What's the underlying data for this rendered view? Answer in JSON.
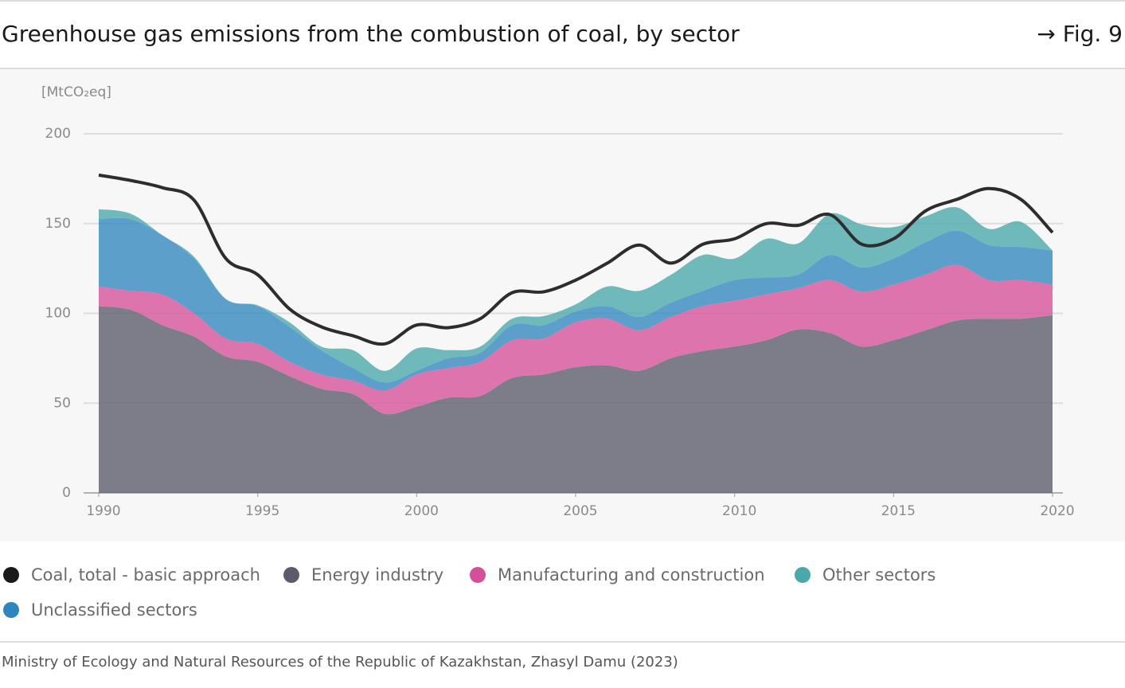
{
  "chart_data": {
    "type": "stacked-area-line",
    "title": "Greenhouse gas emissions from the combustion of coal, by sector",
    "figure_label": "→ Fig. 9",
    "y_axis_label": "[MtCO₂eq]",
    "source": "Ministry of Ecology and Natural Resources of the Republic of Kazakhstan, Zhasyl Damu (2023)",
    "x": [
      1990,
      1991,
      1992,
      1993,
      1994,
      1995,
      1996,
      1997,
      1998,
      1999,
      2000,
      2001,
      2002,
      2003,
      2004,
      2005,
      2006,
      2007,
      2008,
      2009,
      2010,
      2011,
      2012,
      2013,
      2014,
      2015,
      2016,
      2017,
      2018,
      2019,
      2020
    ],
    "xlim": [
      1990,
      2020
    ],
    "xticks": [
      1990,
      1995,
      2000,
      2005,
      2010,
      2015,
      2020
    ],
    "ylim": [
      0,
      200
    ],
    "yticks": [
      0,
      50,
      100,
      150,
      200
    ],
    "grid": true,
    "series": [
      {
        "name": "Coal, total - basic approach",
        "color": "#1a1a1a",
        "kind": "line",
        "values": [
          177,
          174,
          170,
          163,
          130.5,
          121.5,
          102.5,
          92.5,
          87.5,
          83,
          93.5,
          92,
          97,
          111.5,
          112,
          118.5,
          128,
          138,
          128,
          138.5,
          141.5,
          150,
          149,
          155,
          138.5,
          141.5,
          157,
          163.5,
          169.5,
          163.5,
          145
        ]
      },
      {
        "name": "Energy industry",
        "color": "#5b5b6b",
        "kind": "area",
        "values": [
          104,
          102,
          93.5,
          87,
          76,
          73,
          65,
          58,
          55,
          44,
          48,
          53,
          54,
          64,
          66,
          70,
          71,
          68,
          75,
          79,
          81.5,
          85,
          91,
          89,
          81.5,
          85,
          90.5,
          96,
          97,
          97,
          99
        ]
      },
      {
        "name": "Manufacturing and construction",
        "color": "#d64f9a",
        "kind": "area",
        "values": [
          11,
          10.5,
          17,
          13,
          10,
          10,
          8,
          8,
          7.5,
          13,
          18,
          16.5,
          19,
          21,
          20,
          25,
          26,
          22.5,
          23,
          25,
          25.5,
          25.5,
          23,
          29.5,
          30.5,
          31,
          31,
          31,
          21.5,
          21.5,
          17
        ]
      },
      {
        "name": "Other sectors",
        "color": "#4aa8aa",
        "kind": "area",
        "values": [
          5.5,
          3,
          0,
          1,
          0,
          0.5,
          2.5,
          2,
          10,
          6.5,
          12.5,
          4.5,
          3.5,
          3.5,
          5,
          4,
          11,
          14.5,
          15.5,
          20,
          12,
          21.5,
          17.5,
          23,
          24,
          17.5,
          14.5,
          13,
          9,
          14,
          0
        ]
      },
      {
        "name": "Unclassified sectors",
        "color": "#2f86be",
        "kind": "area",
        "values": [
          37.5,
          40,
          33,
          30.5,
          22,
          21,
          19.5,
          13.5,
          7,
          4.5,
          2,
          5.5,
          5,
          8.5,
          7.5,
          6,
          7,
          7.5,
          8,
          8.5,
          11.5,
          9.5,
          7.5,
          14,
          13.5,
          14.5,
          18,
          19,
          19.5,
          18.5,
          19
        ]
      }
    ],
    "stack_order": [
      1,
      2,
      4,
      3
    ]
  }
}
